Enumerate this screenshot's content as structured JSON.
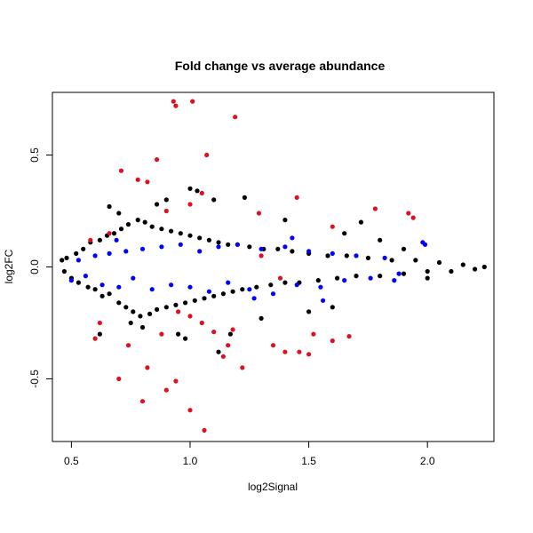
{
  "chart_data": {
    "type": "scatter",
    "title": "Fold change vs average abundance",
    "xlabel": "log2Signal",
    "ylabel": "log2FC",
    "xlim": [
      0.42,
      2.28
    ],
    "ylim": [
      -0.78,
      0.78
    ],
    "x_ticks": [
      0.5,
      1.0,
      1.5,
      2.0
    ],
    "x_tick_labels": [
      "0.5",
      "1.0",
      "1.5",
      "2.0"
    ],
    "y_ticks": [
      -0.5,
      0.0,
      0.5
    ],
    "y_tick_labels": [
      "-0.5",
      "0.0",
      "0.5"
    ],
    "grid": false,
    "series": [
      {
        "color": "#000000",
        "points": [
          [
            0.46,
            0.03
          ],
          [
            0.47,
            -0.02
          ],
          [
            0.48,
            0.04
          ],
          [
            0.5,
            -0.05
          ],
          [
            0.52,
            0.06
          ],
          [
            0.53,
            -0.07
          ],
          [
            0.55,
            0.08
          ],
          [
            0.57,
            -0.09
          ],
          [
            0.58,
            0.11
          ],
          [
            0.6,
            -0.1
          ],
          [
            0.62,
            0.12
          ],
          [
            0.63,
            -0.13
          ],
          [
            0.65,
            0.14
          ],
          [
            0.66,
            -0.12
          ],
          [
            0.68,
            0.15
          ],
          [
            0.7,
            -0.16
          ],
          [
            0.71,
            0.17
          ],
          [
            0.73,
            -0.18
          ],
          [
            0.74,
            0.19
          ],
          [
            0.76,
            -0.2
          ],
          [
            0.78,
            0.21
          ],
          [
            0.79,
            -0.22
          ],
          [
            0.81,
            0.2
          ],
          [
            0.83,
            -0.21
          ],
          [
            0.84,
            0.18
          ],
          [
            0.86,
            -0.19
          ],
          [
            0.88,
            0.17
          ],
          [
            0.9,
            -0.18
          ],
          [
            0.92,
            0.16
          ],
          [
            0.94,
            -0.17
          ],
          [
            0.96,
            0.15
          ],
          [
            0.98,
            -0.16
          ],
          [
            1.0,
            0.14
          ],
          [
            1.02,
            -0.15
          ],
          [
            1.04,
            0.13
          ],
          [
            1.06,
            -0.14
          ],
          [
            1.08,
            0.12
          ],
          [
            1.1,
            -0.13
          ],
          [
            1.12,
            0.11
          ],
          [
            1.14,
            -0.12
          ],
          [
            1.16,
            0.1
          ],
          [
            1.18,
            -0.11
          ],
          [
            1.2,
            0.1
          ],
          [
            1.22,
            -0.1
          ],
          [
            1.25,
            0.09
          ],
          [
            1.28,
            -0.09
          ],
          [
            1.31,
            0.08
          ],
          [
            1.34,
            -0.08
          ],
          [
            1.37,
            0.08
          ],
          [
            1.4,
            -0.07
          ],
          [
            1.43,
            0.07
          ],
          [
            1.46,
            -0.07
          ],
          [
            1.5,
            0.06
          ],
          [
            1.54,
            -0.06
          ],
          [
            1.58,
            0.05
          ],
          [
            1.62,
            -0.05
          ],
          [
            1.66,
            0.05
          ],
          [
            1.7,
            -0.04
          ],
          [
            1.75,
            0.04
          ],
          [
            1.8,
            -0.04
          ],
          [
            1.85,
            0.03
          ],
          [
            1.9,
            -0.03
          ],
          [
            1.95,
            0.03
          ],
          [
            2.0,
            -0.02
          ],
          [
            2.05,
            0.02
          ],
          [
            2.1,
            -0.02
          ],
          [
            2.15,
            0.01
          ],
          [
            2.2,
            -0.01
          ],
          [
            2.24,
            0.0
          ],
          [
            0.66,
            0.27
          ],
          [
            0.7,
            0.24
          ],
          [
            0.75,
            -0.25
          ],
          [
            0.8,
            -0.27
          ],
          [
            0.9,
            0.3
          ],
          [
            0.95,
            -0.3
          ],
          [
            1.0,
            0.35
          ],
          [
            1.03,
            0.34
          ],
          [
            1.1,
            0.3
          ],
          [
            1.17,
            -0.3
          ],
          [
            1.23,
            0.31
          ],
          [
            1.3,
            -0.23
          ],
          [
            1.4,
            0.21
          ],
          [
            1.5,
            -0.2
          ],
          [
            1.6,
            -0.18
          ],
          [
            1.65,
            0.15
          ],
          [
            1.72,
            0.2
          ],
          [
            1.8,
            0.12
          ],
          [
            1.9,
            0.08
          ],
          [
            2.0,
            -0.05
          ],
          [
            1.12,
            -0.38
          ],
          [
            0.98,
            -0.32
          ],
          [
            0.86,
            0.28
          ],
          [
            0.62,
            -0.3
          ]
        ]
      },
      {
        "color": "#0000ff",
        "points": [
          [
            0.5,
            -0.06
          ],
          [
            0.53,
            0.03
          ],
          [
            0.56,
            -0.04
          ],
          [
            0.6,
            0.05
          ],
          [
            0.63,
            -0.08
          ],
          [
            0.66,
            0.06
          ],
          [
            0.7,
            -0.09
          ],
          [
            0.73,
            0.07
          ],
          [
            0.76,
            -0.05
          ],
          [
            0.8,
            0.08
          ],
          [
            0.84,
            -0.1
          ],
          [
            0.88,
            0.09
          ],
          [
            0.92,
            -0.08
          ],
          [
            0.96,
            0.1
          ],
          [
            1.0,
            -0.09
          ],
          [
            1.04,
            0.07
          ],
          [
            1.08,
            -0.11
          ],
          [
            1.12,
            0.09
          ],
          [
            1.16,
            -0.07
          ],
          [
            1.2,
            0.1
          ],
          [
            1.25,
            -0.1
          ],
          [
            1.3,
            0.08
          ],
          [
            1.35,
            -0.12
          ],
          [
            1.4,
            0.09
          ],
          [
            1.45,
            -0.08
          ],
          [
            1.5,
            0.07
          ],
          [
            1.55,
            -0.09
          ],
          [
            1.6,
            0.06
          ],
          [
            1.65,
            -0.06
          ],
          [
            1.7,
            0.05
          ],
          [
            1.76,
            -0.05
          ],
          [
            1.82,
            0.04
          ],
          [
            1.88,
            -0.03
          ],
          [
            1.98,
            0.11
          ],
          [
            1.99,
            0.1
          ],
          [
            1.43,
            0.13
          ],
          [
            1.27,
            -0.14
          ],
          [
            1.56,
            -0.15
          ],
          [
            0.69,
            0.12
          ],
          [
            1.86,
            -0.06
          ]
        ]
      },
      {
        "color": "#dd1122",
        "points": [
          [
            0.93,
            0.74
          ],
          [
            0.94,
            0.72
          ],
          [
            1.01,
            0.74
          ],
          [
            1.19,
            0.67
          ],
          [
            0.86,
            0.48
          ],
          [
            1.07,
            0.5
          ],
          [
            0.71,
            0.43
          ],
          [
            0.78,
            0.39
          ],
          [
            0.82,
            0.38
          ],
          [
            1.05,
            0.33
          ],
          [
            1.0,
            0.28
          ],
          [
            0.9,
            0.25
          ],
          [
            1.45,
            0.31
          ],
          [
            1.6,
            0.18
          ],
          [
            1.78,
            0.26
          ],
          [
            1.92,
            0.24
          ],
          [
            1.94,
            0.22
          ],
          [
            1.29,
            0.24
          ],
          [
            1.0,
            -0.22
          ],
          [
            0.95,
            -0.2
          ],
          [
            1.05,
            -0.25
          ],
          [
            1.1,
            -0.29
          ],
          [
            1.16,
            -0.35
          ],
          [
            1.22,
            -0.45
          ],
          [
            1.14,
            -0.4
          ],
          [
            1.35,
            -0.35
          ],
          [
            1.4,
            -0.38
          ],
          [
            1.46,
            -0.38
          ],
          [
            1.5,
            -0.39
          ],
          [
            1.52,
            -0.3
          ],
          [
            1.6,
            -0.33
          ],
          [
            1.67,
            -0.31
          ],
          [
            0.7,
            -0.5
          ],
          [
            0.8,
            -0.6
          ],
          [
            0.9,
            -0.55
          ],
          [
            0.94,
            -0.51
          ],
          [
            1.0,
            -0.64
          ],
          [
            1.06,
            -0.73
          ],
          [
            0.82,
            -0.45
          ],
          [
            0.74,
            -0.35
          ],
          [
            0.6,
            -0.32
          ],
          [
            0.62,
            -0.25
          ],
          [
            0.58,
            0.12
          ],
          [
            0.66,
            0.15
          ],
          [
            0.88,
            -0.3
          ],
          [
            1.18,
            -0.28
          ],
          [
            1.3,
            0.05
          ],
          [
            1.38,
            -0.05
          ]
        ]
      }
    ]
  }
}
